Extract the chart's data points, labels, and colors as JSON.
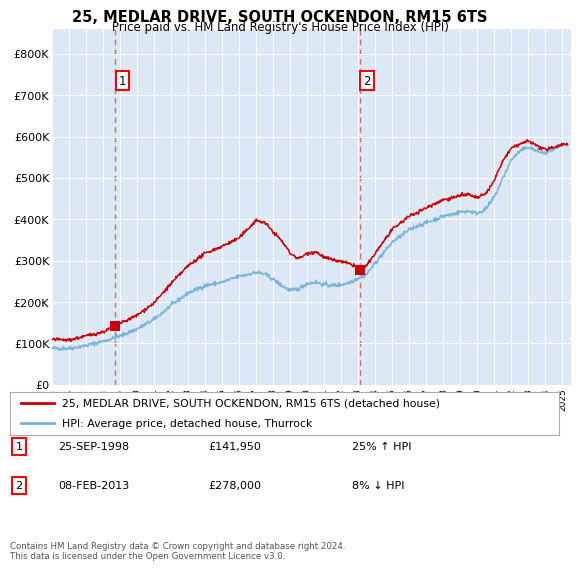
{
  "title": "25, MEDLAR DRIVE, SOUTH OCKENDON, RM15 6TS",
  "subtitle": "Price paid vs. HM Land Registry's House Price Index (HPI)",
  "xlim_start": 1995.0,
  "xlim_end": 2025.5,
  "ylim_min": 0,
  "ylim_max": 860000,
  "yticks": [
    0,
    100000,
    200000,
    300000,
    400000,
    500000,
    600000,
    700000,
    800000
  ],
  "ytick_labels": [
    "£0",
    "£100K",
    "£200K",
    "£300K",
    "£400K",
    "£500K",
    "£600K",
    "£700K",
    "£800K"
  ],
  "xtick_years": [
    1995,
    1996,
    1997,
    1998,
    1999,
    2000,
    2001,
    2002,
    2003,
    2004,
    2005,
    2006,
    2007,
    2008,
    2009,
    2010,
    2011,
    2012,
    2013,
    2014,
    2015,
    2016,
    2017,
    2018,
    2019,
    2020,
    2021,
    2022,
    2023,
    2024,
    2025
  ],
  "hpi_color": "#7ab4d8",
  "price_color": "#cc0000",
  "vline_color": "#e05050",
  "sale1_year": 1998.73,
  "sale1_price": 141950,
  "sale1_label": "1",
  "sale2_year": 2013.1,
  "sale2_price": 278000,
  "sale2_label": "2",
  "legend_line1": "25, MEDLAR DRIVE, SOUTH OCKENDON, RM15 6TS (detached house)",
  "legend_line2": "HPI: Average price, detached house, Thurrock",
  "table_row1_num": "1",
  "table_row1_date": "25-SEP-1998",
  "table_row1_price": "£141,950",
  "table_row1_hpi": "25% ↑ HPI",
  "table_row2_num": "2",
  "table_row2_date": "08-FEB-2013",
  "table_row2_price": "£278,000",
  "table_row2_hpi": "8% ↓ HPI",
  "footer": "Contains HM Land Registry data © Crown copyright and database right 2024.\nThis data is licensed under the Open Government Licence v3.0.",
  "plot_bg_color": "#dce8f5",
  "fig_bg_color": "#ffffff",
  "hpi_points": [
    [
      1995.0,
      88000
    ],
    [
      1996.0,
      88000
    ],
    [
      1997.0,
      95000
    ],
    [
      1998.0,
      105000
    ],
    [
      1999.0,
      118000
    ],
    [
      2000.0,
      135000
    ],
    [
      2001.0,
      158000
    ],
    [
      2002.0,
      192000
    ],
    [
      2003.0,
      222000
    ],
    [
      2004.0,
      240000
    ],
    [
      2005.0,
      248000
    ],
    [
      2006.0,
      262000
    ],
    [
      2007.0,
      272000
    ],
    [
      2007.5,
      268000
    ],
    [
      2008.0,
      255000
    ],
    [
      2008.5,
      240000
    ],
    [
      2009.0,
      228000
    ],
    [
      2009.5,
      232000
    ],
    [
      2010.0,
      245000
    ],
    [
      2010.5,
      248000
    ],
    [
      2011.0,
      242000
    ],
    [
      2011.5,
      240000
    ],
    [
      2012.0,
      242000
    ],
    [
      2012.5,
      248000
    ],
    [
      2013.0,
      258000
    ],
    [
      2013.5,
      268000
    ],
    [
      2014.0,
      295000
    ],
    [
      2014.5,
      320000
    ],
    [
      2015.0,
      345000
    ],
    [
      2015.5,
      360000
    ],
    [
      2016.0,
      375000
    ],
    [
      2016.5,
      385000
    ],
    [
      2017.0,
      392000
    ],
    [
      2017.5,
      400000
    ],
    [
      2018.0,
      408000
    ],
    [
      2018.5,
      412000
    ],
    [
      2019.0,
      418000
    ],
    [
      2019.5,
      420000
    ],
    [
      2020.0,
      415000
    ],
    [
      2020.5,
      425000
    ],
    [
      2021.0,
      455000
    ],
    [
      2021.5,
      500000
    ],
    [
      2022.0,
      545000
    ],
    [
      2022.5,
      565000
    ],
    [
      2023.0,
      575000
    ],
    [
      2023.5,
      565000
    ],
    [
      2024.0,
      560000
    ],
    [
      2024.5,
      570000
    ],
    [
      2025.0,
      580000
    ]
  ],
  "price_points": [
    [
      1995.0,
      110000
    ],
    [
      1996.0,
      108000
    ],
    [
      1997.0,
      118000
    ],
    [
      1998.0,
      128000
    ],
    [
      1998.73,
      141950
    ],
    [
      1999.0,
      148000
    ],
    [
      2000.0,
      168000
    ],
    [
      2001.0,
      198000
    ],
    [
      2002.0,
      245000
    ],
    [
      2003.0,
      288000
    ],
    [
      2004.0,
      318000
    ],
    [
      2005.0,
      335000
    ],
    [
      2006.0,
      355000
    ],
    [
      2007.0,
      398000
    ],
    [
      2007.5,
      392000
    ],
    [
      2008.0,
      370000
    ],
    [
      2008.5,
      348000
    ],
    [
      2009.0,
      318000
    ],
    [
      2009.5,
      305000
    ],
    [
      2010.0,
      318000
    ],
    [
      2010.5,
      322000
    ],
    [
      2011.0,
      308000
    ],
    [
      2011.5,
      302000
    ],
    [
      2012.0,
      298000
    ],
    [
      2012.5,
      292000
    ],
    [
      2013.0,
      285000
    ],
    [
      2013.1,
      278000
    ],
    [
      2013.5,
      288000
    ],
    [
      2014.0,
      318000
    ],
    [
      2014.5,
      348000
    ],
    [
      2015.0,
      375000
    ],
    [
      2015.5,
      392000
    ],
    [
      2016.0,
      408000
    ],
    [
      2016.5,
      418000
    ],
    [
      2017.0,
      428000
    ],
    [
      2017.5,
      438000
    ],
    [
      2018.0,
      448000
    ],
    [
      2018.5,
      452000
    ],
    [
      2019.0,
      458000
    ],
    [
      2019.5,
      460000
    ],
    [
      2020.0,
      452000
    ],
    [
      2020.5,
      462000
    ],
    [
      2021.0,
      495000
    ],
    [
      2021.5,
      542000
    ],
    [
      2022.0,
      572000
    ],
    [
      2022.5,
      582000
    ],
    [
      2023.0,
      590000
    ],
    [
      2023.5,
      578000
    ],
    [
      2024.0,
      568000
    ],
    [
      2024.5,
      575000
    ],
    [
      2025.0,
      582000
    ]
  ]
}
